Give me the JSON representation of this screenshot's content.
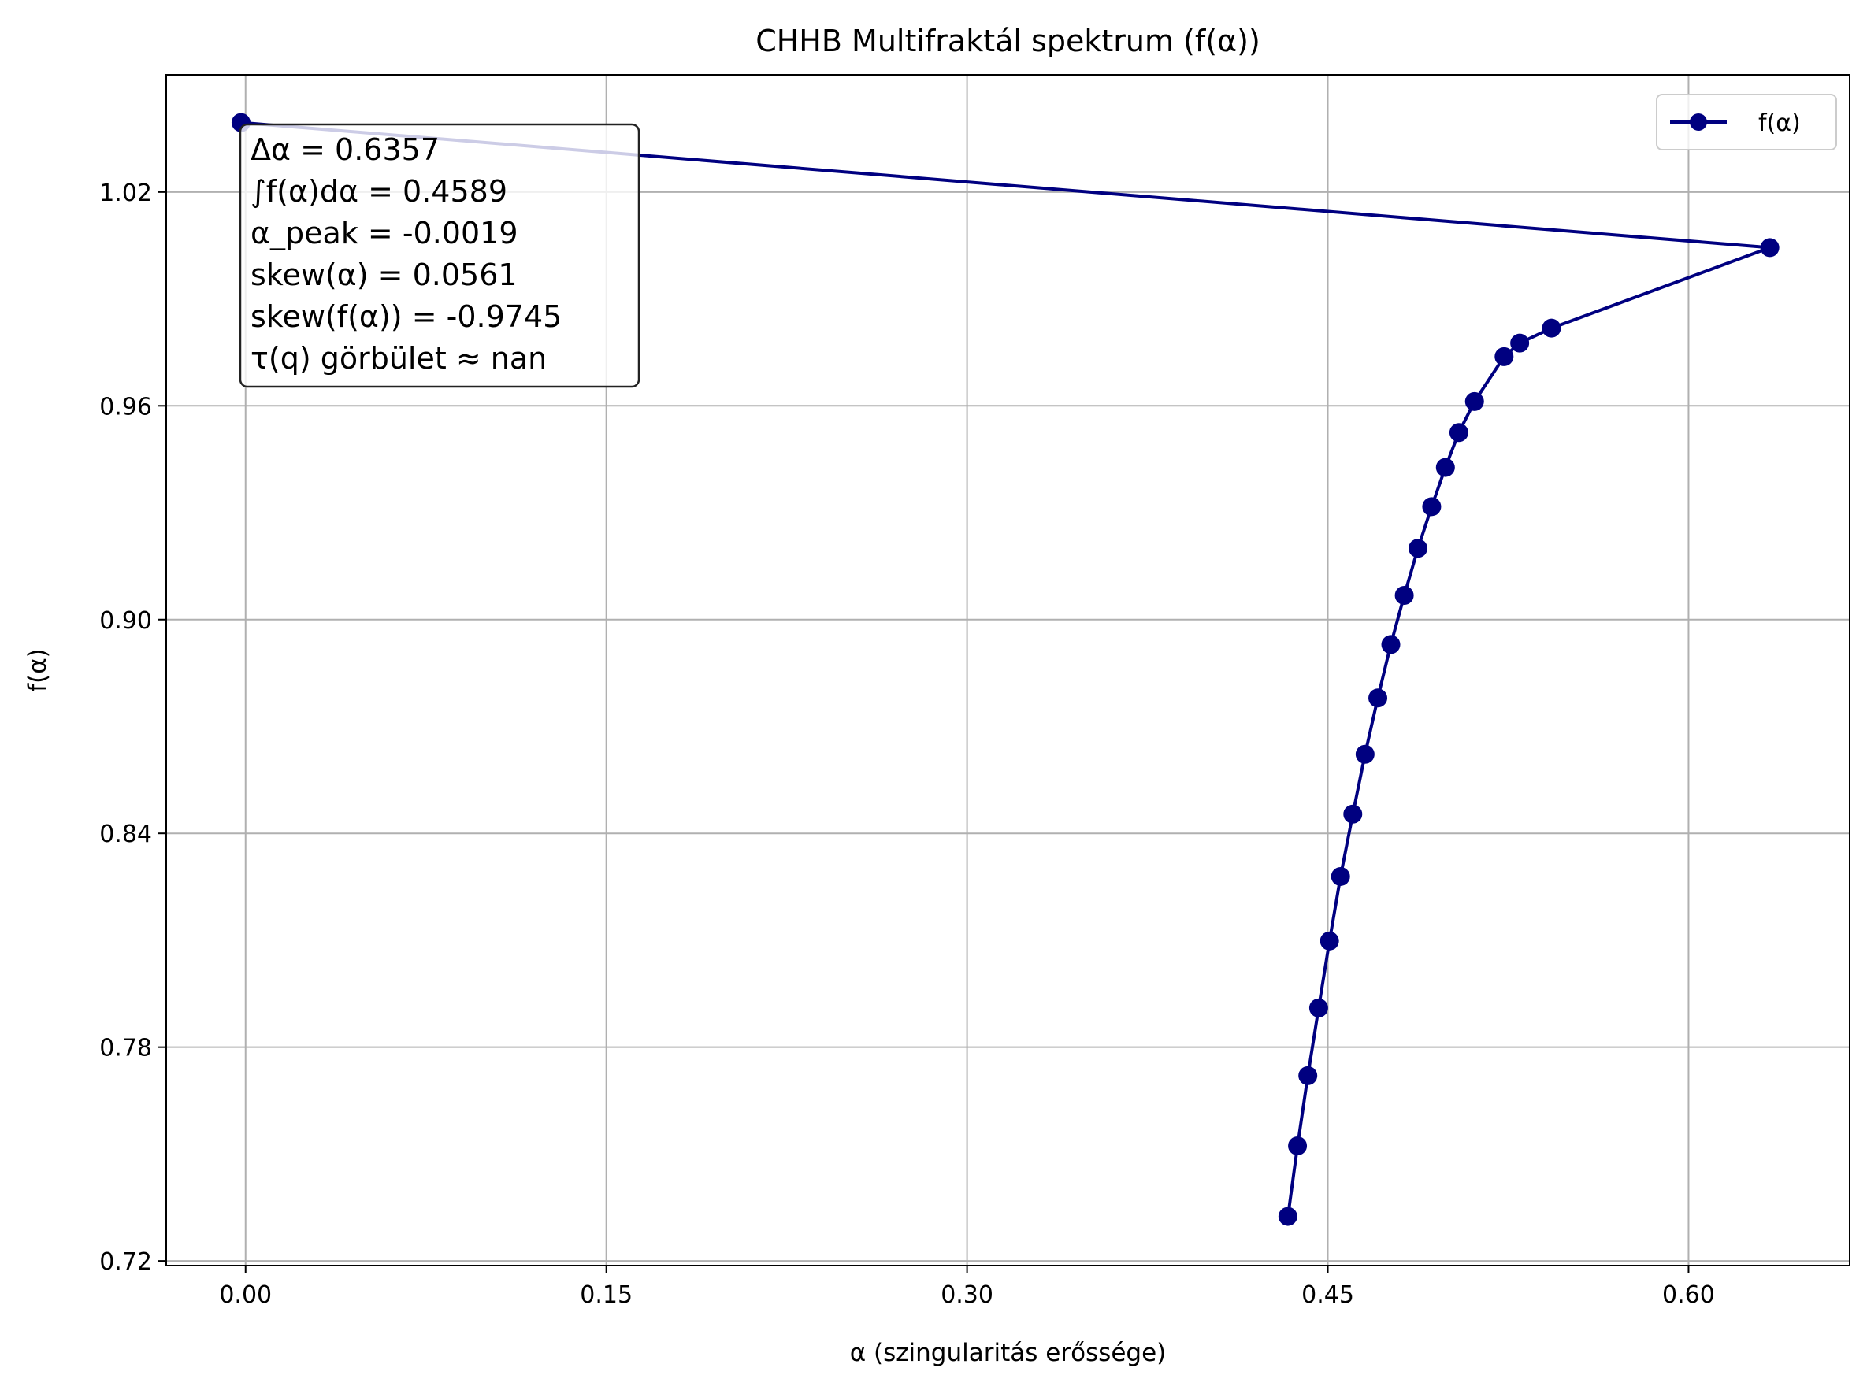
{
  "chart_data": {
    "type": "line",
    "title": "CHHB Multifraktál spektrum (f(α))",
    "xlabel": "α (szingularitás erőssége)",
    "ylabel": "f(α)",
    "xlim": [
      -0.033,
      0.667
    ],
    "ylim": [
      0.7187,
      1.0529
    ],
    "xticks": [
      0.0,
      0.15,
      0.3,
      0.45,
      0.6
    ],
    "xtick_labels": [
      "0.00",
      "0.15",
      "0.30",
      "0.45",
      "0.60"
    ],
    "yticks": [
      0.72,
      0.78,
      0.84,
      0.9,
      0.96,
      1.02
    ],
    "ytick_labels": [
      "0.72",
      "0.78",
      "0.84",
      "0.90",
      "0.96",
      "1.02"
    ],
    "grid": true,
    "legend_position": "top-right",
    "series": [
      {
        "name": "f(α)",
        "color": "#000080",
        "marker": "circle",
        "points": [
          [
            0.4334,
            0.7325
          ],
          [
            0.4374,
            0.7523
          ],
          [
            0.4417,
            0.772
          ],
          [
            0.4462,
            0.791
          ],
          [
            0.4507,
            0.8098
          ],
          [
            0.4553,
            0.8279
          ],
          [
            0.4604,
            0.8454
          ],
          [
            0.4655,
            0.8622
          ],
          [
            0.4708,
            0.878
          ],
          [
            0.4762,
            0.893
          ],
          [
            0.4818,
            0.9068
          ],
          [
            0.4875,
            0.92
          ],
          [
            0.4932,
            0.9317
          ],
          [
            0.4989,
            0.9427
          ],
          [
            0.5045,
            0.9525
          ],
          [
            0.511,
            0.9612
          ],
          [
            0.5233,
            0.9738
          ],
          [
            0.5298,
            0.9776
          ],
          [
            0.543,
            0.9818
          ],
          [
            0.6338,
            1.0044
          ],
          [
            -0.0019,
            1.0395
          ]
        ]
      }
    ],
    "annotation_lines": [
      "Δα = 0.6357",
      "∫f(α)dα = 0.4589",
      "α_peak = -0.0019",
      "skew(α) = 0.0561",
      "skew(f(α)) = -0.9745",
      "τ(q) görbület ≈ nan"
    ]
  },
  "colors": {
    "series": "#000080",
    "grid": "#b0b0b0",
    "axes": "#000000"
  }
}
